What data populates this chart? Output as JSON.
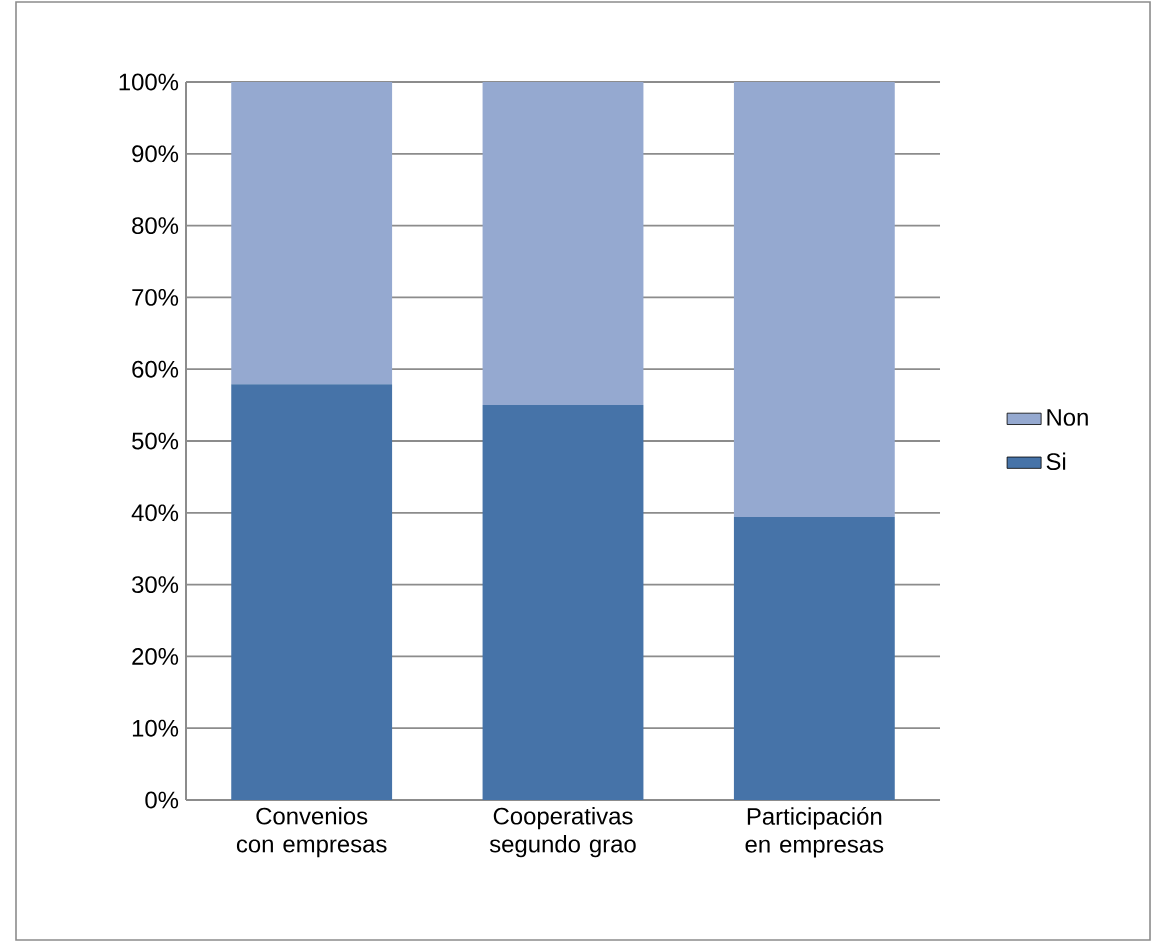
{
  "chart_data": {
    "type": "bar",
    "stacked": true,
    "categories": [
      "Convenios con empresas",
      "Cooperativas segundo grao",
      "Participación en empresas"
    ],
    "series": [
      {
        "name": "Si",
        "color": "#4673a8",
        "values": [
          57.9,
          55.0,
          39.4
        ]
      },
      {
        "name": "Non",
        "color": "#95a9d0",
        "values": [
          42.1,
          45.0,
          60.6
        ]
      }
    ],
    "ylim": [
      0,
      100
    ],
    "yticks": [
      {
        "value": 0,
        "label": "0%"
      },
      {
        "value": 10,
        "label": "10%"
      },
      {
        "value": 20,
        "label": "20%"
      },
      {
        "value": 30,
        "label": "30%"
      },
      {
        "value": 40,
        "label": "40%"
      },
      {
        "value": 50,
        "label": "50%"
      },
      {
        "value": 60,
        "label": "60%"
      },
      {
        "value": 70,
        "label": "70%"
      },
      {
        "value": 80,
        "label": "80%"
      },
      {
        "value": 90,
        "label": "90%"
      },
      {
        "value": 100,
        "label": "100%"
      }
    ],
    "grid": "y",
    "legend": "right"
  }
}
